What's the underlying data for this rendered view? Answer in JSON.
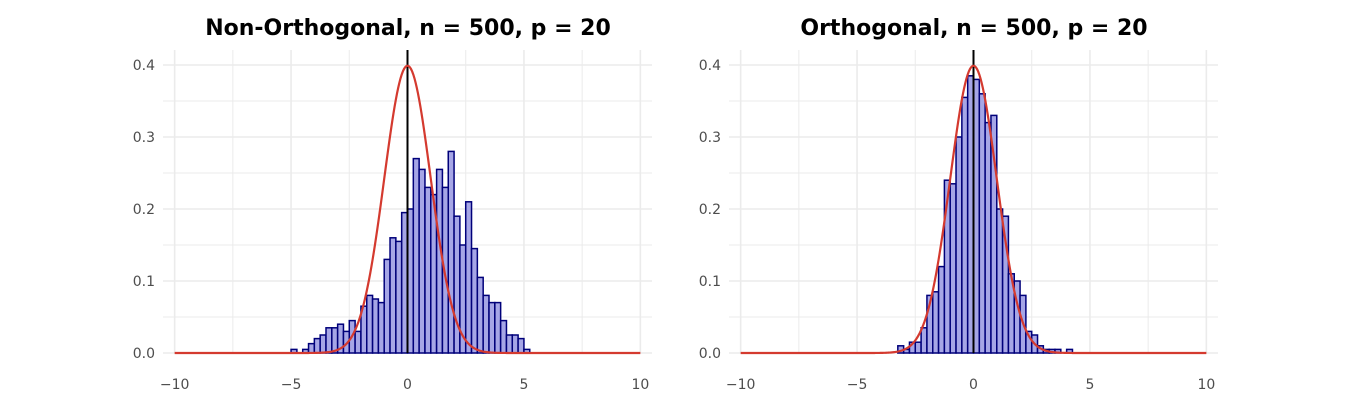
{
  "chart_data": [
    {
      "type": "bar",
      "title": "Non-Orthogonal, n = 500, p = 20",
      "xlabel": "",
      "ylabel": "",
      "xlim": [
        -10.5,
        10.5
      ],
      "ylim": [
        0,
        0.4
      ],
      "x_ticks": [
        -10,
        -5,
        0,
        5,
        10
      ],
      "x_tick_labels": [
        "−10",
        "−5",
        "0",
        "5",
        "10"
      ],
      "y_ticks": [
        0.0,
        0.1,
        0.2,
        0.3,
        0.4
      ],
      "y_tick_labels": [
        "0.0",
        "0.1",
        "0.2",
        "0.3",
        "0.4"
      ],
      "grid": true,
      "bin_width": 0.25,
      "bins": [
        {
          "x": -4.875,
          "y": 0.005
        },
        {
          "x": -4.375,
          "y": 0.005
        },
        {
          "x": -4.125,
          "y": 0.013
        },
        {
          "x": -3.875,
          "y": 0.02
        },
        {
          "x": -3.625,
          "y": 0.025
        },
        {
          "x": -3.375,
          "y": 0.035
        },
        {
          "x": -3.125,
          "y": 0.035
        },
        {
          "x": -2.875,
          "y": 0.04
        },
        {
          "x": -2.625,
          "y": 0.03
        },
        {
          "x": -2.375,
          "y": 0.045
        },
        {
          "x": -2.125,
          "y": 0.03
        },
        {
          "x": -1.875,
          "y": 0.065
        },
        {
          "x": -1.625,
          "y": 0.08
        },
        {
          "x": -1.375,
          "y": 0.075
        },
        {
          "x": -1.125,
          "y": 0.07
        },
        {
          "x": -0.875,
          "y": 0.13
        },
        {
          "x": -0.625,
          "y": 0.16
        },
        {
          "x": -0.375,
          "y": 0.155
        },
        {
          "x": -0.125,
          "y": 0.195
        },
        {
          "x": 0.125,
          "y": 0.2
        },
        {
          "x": 0.375,
          "y": 0.27
        },
        {
          "x": 0.625,
          "y": 0.255
        },
        {
          "x": 0.875,
          "y": 0.23
        },
        {
          "x": 1.125,
          "y": 0.22
        },
        {
          "x": 1.375,
          "y": 0.255
        },
        {
          "x": 1.625,
          "y": 0.23
        },
        {
          "x": 1.875,
          "y": 0.28
        },
        {
          "x": 2.125,
          "y": 0.19
        },
        {
          "x": 2.375,
          "y": 0.15
        },
        {
          "x": 2.625,
          "y": 0.21
        },
        {
          "x": 2.875,
          "y": 0.145
        },
        {
          "x": 3.125,
          "y": 0.105
        },
        {
          "x": 3.375,
          "y": 0.08
        },
        {
          "x": 3.625,
          "y": 0.07
        },
        {
          "x": 3.875,
          "y": 0.07
        },
        {
          "x": 4.125,
          "y": 0.045
        },
        {
          "x": 4.375,
          "y": 0.025
        },
        {
          "x": 4.625,
          "y": 0.025
        },
        {
          "x": 4.875,
          "y": 0.02
        },
        {
          "x": 5.125,
          "y": 0.005
        }
      ],
      "density_curve": {
        "type": "normal",
        "mean": 0,
        "sd": 1
      },
      "vline_x": 0,
      "colors": {
        "bar_fill": "#a6a6e6",
        "bar_edge": "#00007a",
        "curve": "#d43a2f",
        "vline": "#000000",
        "grid": "#ebebeb"
      }
    },
    {
      "type": "bar",
      "title": "Orthogonal, n = 500, p = 20",
      "xlabel": "",
      "ylabel": "",
      "xlim": [
        -10.5,
        10.5
      ],
      "ylim": [
        0,
        0.4
      ],
      "x_ticks": [
        -10,
        -5,
        0,
        5,
        10
      ],
      "x_tick_labels": [
        "−10",
        "−5",
        "0",
        "5",
        "10"
      ],
      "y_ticks": [
        0.0,
        0.1,
        0.2,
        0.3,
        0.4
      ],
      "y_tick_labels": [
        "0.0",
        "0.1",
        "0.2",
        "0.3",
        "0.4"
      ],
      "grid": true,
      "bin_width": 0.25,
      "bins": [
        {
          "x": -3.125,
          "y": 0.01
        },
        {
          "x": -2.875,
          "y": 0.005
        },
        {
          "x": -2.625,
          "y": 0.015
        },
        {
          "x": -2.375,
          "y": 0.015
        },
        {
          "x": -2.125,
          "y": 0.035
        },
        {
          "x": -1.875,
          "y": 0.08
        },
        {
          "x": -1.625,
          "y": 0.085
        },
        {
          "x": -1.375,
          "y": 0.12
        },
        {
          "x": -1.125,
          "y": 0.24
        },
        {
          "x": -0.875,
          "y": 0.235
        },
        {
          "x": -0.625,
          "y": 0.3
        },
        {
          "x": -0.375,
          "y": 0.355
        },
        {
          "x": -0.125,
          "y": 0.385
        },
        {
          "x": 0.125,
          "y": 0.38
        },
        {
          "x": 0.375,
          "y": 0.36
        },
        {
          "x": 0.625,
          "y": 0.32
        },
        {
          "x": 0.875,
          "y": 0.33
        },
        {
          "x": 1.125,
          "y": 0.2
        },
        {
          "x": 1.375,
          "y": 0.19
        },
        {
          "x": 1.625,
          "y": 0.11
        },
        {
          "x": 1.875,
          "y": 0.1
        },
        {
          "x": 2.125,
          "y": 0.08
        },
        {
          "x": 2.375,
          "y": 0.03
        },
        {
          "x": 2.625,
          "y": 0.025
        },
        {
          "x": 2.875,
          "y": 0.01
        },
        {
          "x": 3.125,
          "y": 0.005
        },
        {
          "x": 3.375,
          "y": 0.005
        },
        {
          "x": 3.625,
          "y": 0.005
        },
        {
          "x": 4.125,
          "y": 0.005
        }
      ],
      "density_curve": {
        "type": "normal",
        "mean": 0,
        "sd": 1
      },
      "vline_x": 0,
      "colors": {
        "bar_fill": "#a6a6e6",
        "bar_edge": "#00007a",
        "curve": "#d43a2f",
        "vline": "#000000",
        "grid": "#ebebeb"
      }
    }
  ]
}
